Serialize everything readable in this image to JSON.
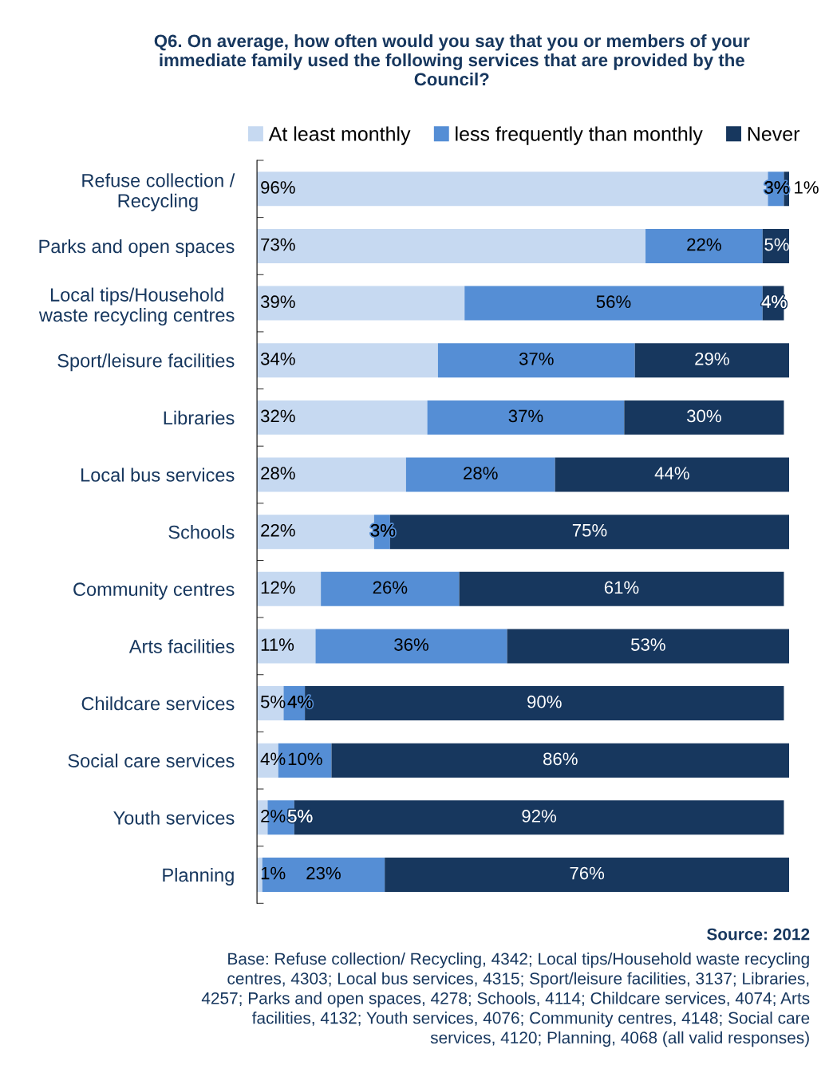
{
  "chart_data": {
    "type": "bar",
    "orientation": "horizontal",
    "stacked": true,
    "legend": "top",
    "grid": false,
    "title": "Q6. On average, how often would you say that you or members of your\nimmediate family used the following services that are provided by the\nCouncil?",
    "categories": [
      "Refuse collection /\nRecycling",
      "Parks and open spaces",
      "Local tips/Household\nwaste recycling centres",
      "Sport/leisure facilities",
      "Libraries",
      "Local bus services",
      "Schools",
      "Community centres",
      "Arts facilities",
      "Childcare services",
      "Social care services",
      "Youth services",
      "Planning"
    ],
    "series": [
      {
        "name": "At least monthly",
        "color": "#c6d9f1",
        "values": [
          96,
          73,
          39,
          34,
          32,
          28,
          22,
          12,
          11,
          5,
          4,
          2,
          1
        ],
        "value_labels": [
          "96%",
          "73%",
          "39%",
          "34%",
          "32%",
          "28%",
          "22%",
          "12%",
          "11%",
          "5%",
          "4%",
          "2%",
          "1%"
        ]
      },
      {
        "name": "less frequently than monthly",
        "color": "#558ed5",
        "values": [
          3,
          22,
          56,
          37,
          37,
          28,
          3,
          26,
          36,
          4,
          10,
          5,
          23
        ],
        "value_labels": [
          "3%",
          "22%",
          "56%",
          "37%",
          "37%",
          "28%",
          "3%",
          "26%",
          "36%",
          "4%",
          "10%",
          "5%",
          "23%"
        ]
      },
      {
        "name": "Never",
        "color": "#17375e",
        "values": [
          1,
          5,
          4,
          29,
          30,
          44,
          75,
          61,
          53,
          90,
          86,
          92,
          76
        ],
        "value_labels": [
          "1%",
          "5%",
          "4%",
          "29%",
          "30%",
          "44%",
          "75%",
          "61%",
          "53%",
          "90%",
          "86%",
          "92%",
          "76%"
        ]
      }
    ],
    "annotations": [
      "Source: 2012",
      "Base: Refuse collection/ Recycling, 4342; Local tips/Household waste recycling\ncentres, 4303; Local bus services, 4315; Sport/leisure facilities, 3137; Libraries,\n4257; Parks and open spaces, 4278; Schools, 4114; Childcare services, 4074; Arts\nfacilities, 4132; Youth services, 4076; Community centres, 4148; Social care\nservices, 4120; Planning, 4068 (all valid responses)"
    ]
  }
}
